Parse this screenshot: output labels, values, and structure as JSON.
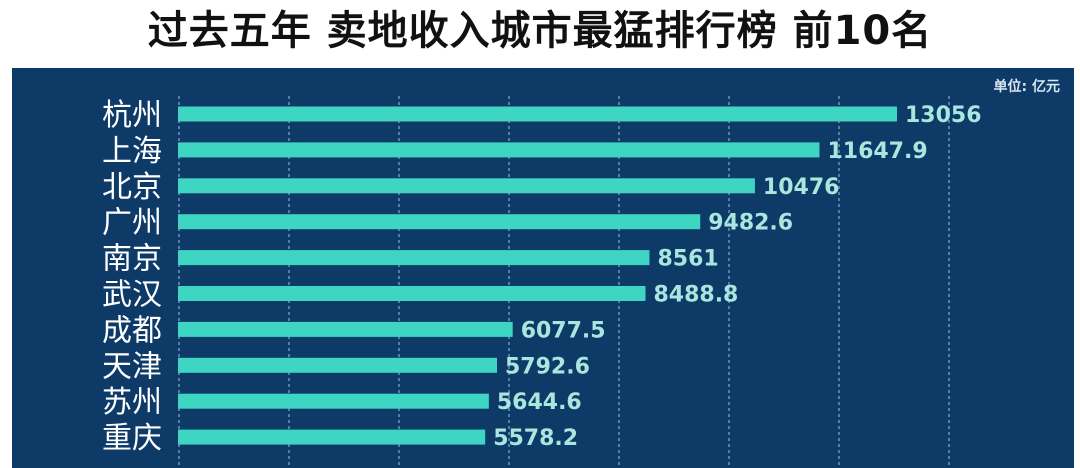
{
  "chart_data": {
    "type": "bar",
    "orientation": "horizontal",
    "title": "过去五年 卖地收入城市最猛排行榜 前10名",
    "unit": "单位: 亿元",
    "categories": [
      "杭州",
      "上海",
      "北京",
      "广州",
      "南京",
      "武汉",
      "成都",
      "天津",
      "苏州",
      "重庆"
    ],
    "values": [
      13056,
      11647.9,
      10476,
      9482.6,
      8561,
      8488.8,
      6077.5,
      5792.6,
      5644.6,
      5578.2
    ],
    "value_labels": [
      "13056",
      "11647.9",
      "10476",
      "9482.6",
      "8561",
      "8488.8",
      "6077.5",
      "5792.6",
      "5644.6",
      "5578.2"
    ],
    "xlim": [
      0,
      16000
    ],
    "grid": "vertical-dashed",
    "colors": {
      "background": "#0e3a68",
      "bar": "#3ed6c3",
      "label": "#ffffff",
      "value_label": "#a9e6de",
      "grid": "#6f93b8"
    }
  }
}
